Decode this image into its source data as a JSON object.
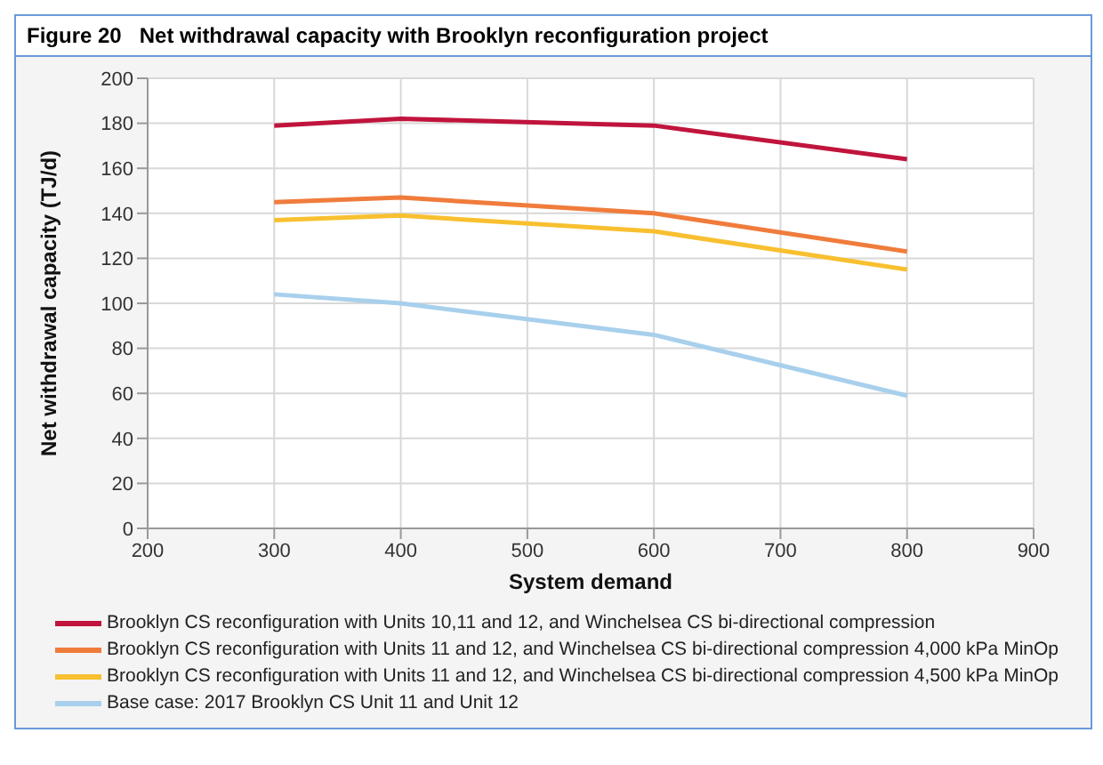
{
  "chart_data": {
    "type": "line",
    "title": "Figure 20   Net withdrawal capacity with Brooklyn reconfiguration project",
    "xlabel": "System demand",
    "ylabel": "Net withdrawal capacity (TJ/d)",
    "x": [
      300,
      400,
      600,
      800
    ],
    "series": [
      {
        "name": "Brooklyn CS reconfiguration with Units 10,11 and 12, and Winchelsea CS bi-directional compression",
        "color": "#c0143c",
        "values": [
          179,
          182,
          179,
          164
        ]
      },
      {
        "name": "Brooklyn CS reconfiguration with Units 11 and 12, and Winchelsea CS bi-directional compression 4,000 kPa MinOp",
        "color": "#f07c3c",
        "values": [
          145,
          147,
          140,
          123
        ]
      },
      {
        "name": "Brooklyn CS reconfiguration with Units 11 and 12, and Winchelsea CS bi-directional compression 4,500 kPa MinOp",
        "color": "#f8c030",
        "values": [
          137,
          139,
          132,
          115
        ]
      },
      {
        "name": "Base case: 2017 Brooklyn CS Unit 11 and Unit 12",
        "color": "#a8d0ec",
        "values": [
          104,
          100,
          86,
          59
        ]
      }
    ],
    "xlim": [
      200,
      900
    ],
    "xticks": [
      200,
      300,
      400,
      500,
      600,
      700,
      800,
      900
    ],
    "ylim": [
      0,
      200
    ],
    "yticks": [
      0,
      20,
      40,
      60,
      80,
      100,
      120,
      140,
      160,
      180,
      200
    ],
    "grid": true,
    "legend": "bottom",
    "marker": "none",
    "line_style": "solid"
  }
}
